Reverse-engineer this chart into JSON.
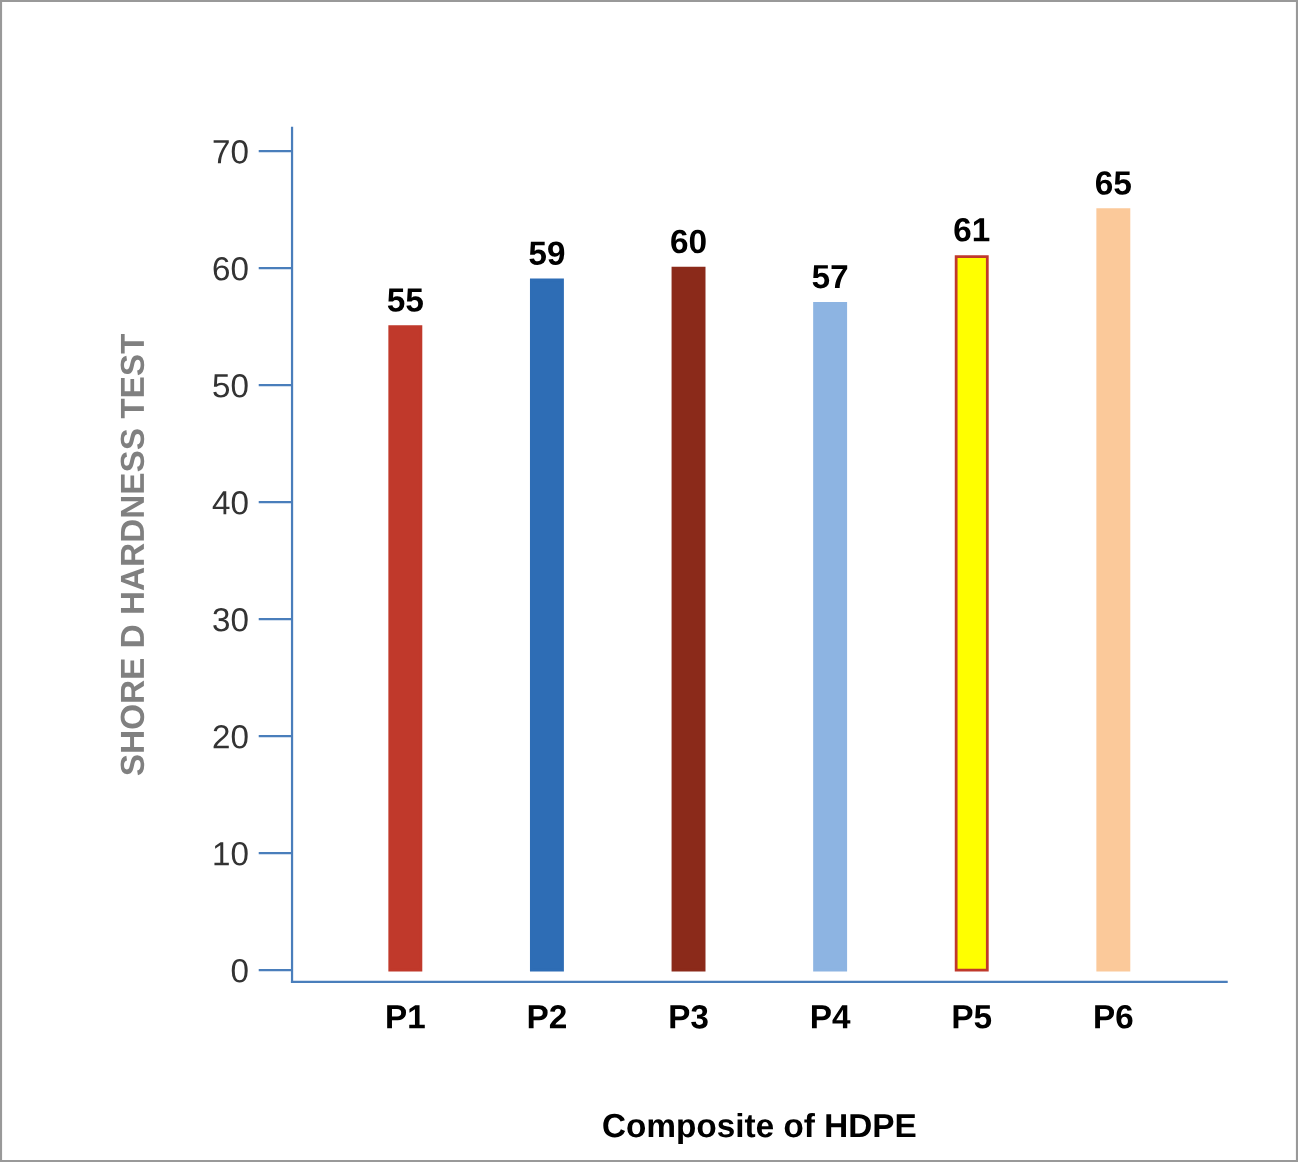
{
  "chart_data": {
    "type": "bar",
    "xlabel": "Composite of HDPE",
    "ylabel": "SHORE D HARDNESS TEST",
    "categories": [
      "P1",
      "P2",
      "P3",
      "P4",
      "P5",
      "P6"
    ],
    "values": [
      55,
      59,
      60,
      57,
      61,
      65
    ],
    "colors": [
      "#c0392b",
      "#2e6db5",
      "#8b2a1a",
      "#8db4e2",
      "#ffff00",
      "#fbc99a"
    ],
    "ylim": [
      -1,
      72
    ],
    "yticks": [
      0,
      10,
      20,
      30,
      40,
      50,
      60,
      70
    ],
    "grid": false,
    "data_labels": true
  }
}
